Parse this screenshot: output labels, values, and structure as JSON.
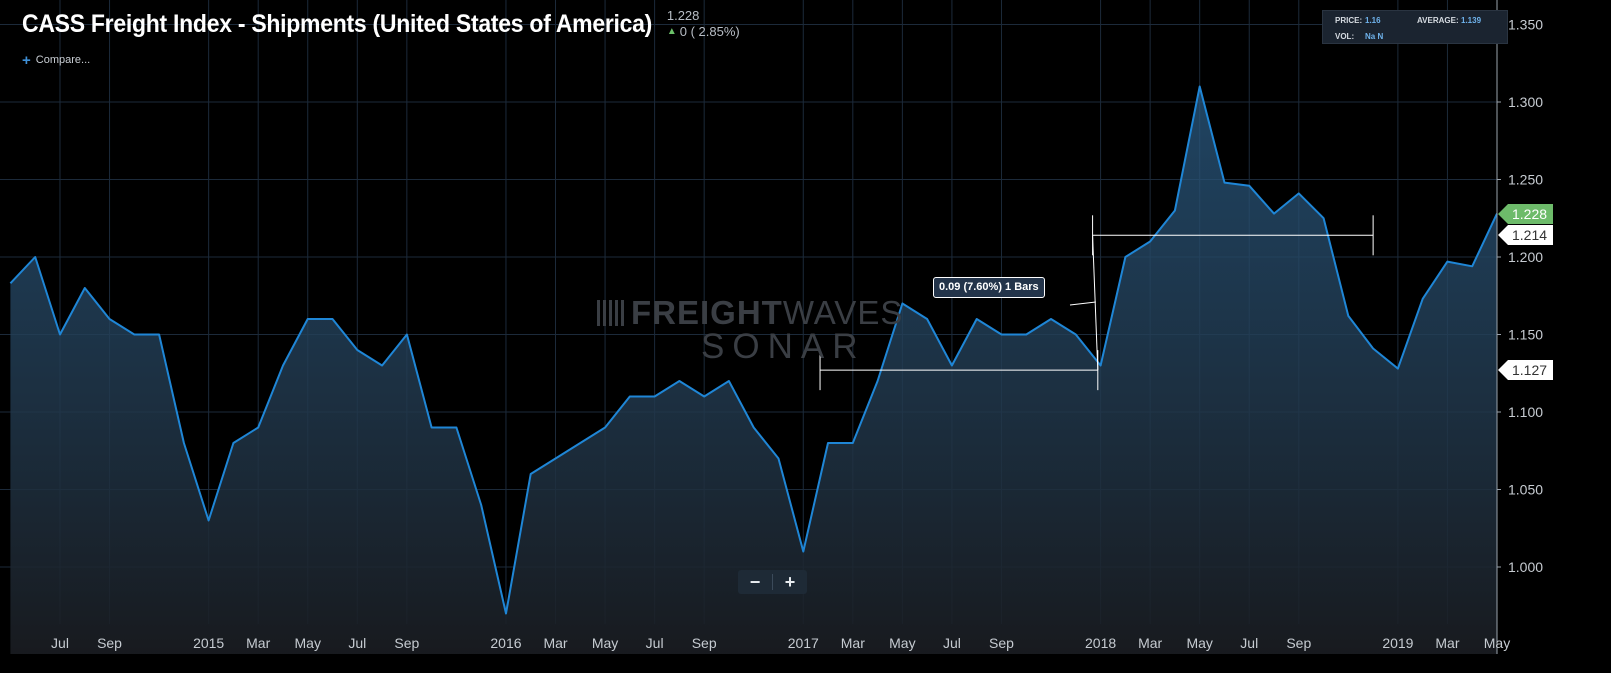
{
  "header": {
    "title": "CASS Freight Index - Shipments (United States of America)",
    "last_value": "1.228",
    "change": "0 ( 2.85%)",
    "compare_label": "Compare...",
    "up_icon": "arrow-up-icon",
    "plus_icon": "plus-icon"
  },
  "info_box": {
    "price_label": "PRICE:",
    "price_value": "1.16",
    "average_label": "AVERAGE:",
    "average_value": "1.139",
    "vol_label": "VOL:",
    "vol_value": "Na N"
  },
  "zoom": {
    "minus": "−",
    "plus": "+"
  },
  "watermark": {
    "line1a": "FREIGHT",
    "line1b": "WAVES",
    "line2": "SONAR"
  },
  "measure_tooltip": "0.09 (7.60%) 1 Bars",
  "price_tags": [
    {
      "label": "1.228",
      "value": 1.228,
      "bg": "#6dbb6a",
      "fg": "#ffffff"
    },
    {
      "label": "1.214",
      "value": 1.214,
      "bg": "#ffffff",
      "fg": "#333333"
    },
    {
      "label": "1.127",
      "value": 1.127,
      "bg": "#ffffff",
      "fg": "#333333"
    }
  ],
  "colors": {
    "line": "#1f86d6",
    "grid": "#1c2a3a",
    "axis_text": "#c6cbd1"
  },
  "chart_data": {
    "type": "area",
    "x": [
      "2014-05",
      "2014-06",
      "2014-07",
      "2014-08",
      "2014-09",
      "2014-10",
      "2014-11",
      "2014-12",
      "2015-01",
      "2015-02",
      "2015-03",
      "2015-04",
      "2015-05",
      "2015-06",
      "2015-07",
      "2015-08",
      "2015-09",
      "2015-10",
      "2015-11",
      "2015-12",
      "2016-01",
      "2016-02",
      "2016-03",
      "2016-04",
      "2016-05",
      "2016-06",
      "2016-07",
      "2016-08",
      "2016-09",
      "2016-10",
      "2016-11",
      "2016-12",
      "2017-01",
      "2017-02",
      "2017-03",
      "2017-04",
      "2017-05",
      "2017-06",
      "2017-07",
      "2017-08",
      "2017-09",
      "2017-10",
      "2017-11",
      "2017-12",
      "2018-01",
      "2018-02",
      "2018-03",
      "2018-04",
      "2018-05",
      "2018-06",
      "2018-07",
      "2018-08",
      "2018-09",
      "2018-10",
      "2018-11",
      "2018-12",
      "2019-01",
      "2019-02",
      "2019-03",
      "2019-04",
      "2019-05"
    ],
    "series": [
      {
        "values": [
          1.183,
          1.2,
          1.15,
          1.18,
          1.16,
          1.15,
          1.15,
          1.08,
          1.03,
          1.08,
          1.09,
          1.13,
          1.16,
          1.16,
          1.14,
          1.13,
          1.15,
          1.09,
          1.09,
          1.04,
          0.97,
          1.06,
          1.07,
          1.08,
          1.09,
          1.11,
          1.11,
          1.12,
          1.11,
          1.12,
          1.09,
          1.07,
          1.01,
          1.08,
          1.08,
          1.12,
          1.17,
          1.16,
          1.13,
          1.16,
          1.15,
          1.15,
          1.16,
          1.15,
          1.13,
          1.2,
          1.21,
          1.23,
          1.31,
          1.248,
          1.246,
          1.228,
          1.241,
          1.225,
          1.162,
          1.141,
          1.128,
          1.173,
          1.197,
          1.194,
          1.228
        ]
      }
    ],
    "x_ticks": [
      {
        "x": "2014-07",
        "label": "Jul"
      },
      {
        "x": "2014-09",
        "label": "Sep"
      },
      {
        "x": "2015-01",
        "label": "2015"
      },
      {
        "x": "2015-03",
        "label": "Mar"
      },
      {
        "x": "2015-05",
        "label": "May"
      },
      {
        "x": "2015-07",
        "label": "Jul"
      },
      {
        "x": "2015-09",
        "label": "Sep"
      },
      {
        "x": "2016-01",
        "label": "2016"
      },
      {
        "x": "2016-03",
        "label": "Mar"
      },
      {
        "x": "2016-05",
        "label": "May"
      },
      {
        "x": "2016-07",
        "label": "Jul"
      },
      {
        "x": "2016-09",
        "label": "Sep"
      },
      {
        "x": "2017-01",
        "label": "2017"
      },
      {
        "x": "2017-03",
        "label": "Mar"
      },
      {
        "x": "2017-05",
        "label": "May"
      },
      {
        "x": "2017-07",
        "label": "Jul"
      },
      {
        "x": "2017-09",
        "label": "Sep"
      },
      {
        "x": "2018-01",
        "label": "2018"
      },
      {
        "x": "2018-03",
        "label": "Mar"
      },
      {
        "x": "2018-05",
        "label": "May"
      },
      {
        "x": "2018-07",
        "label": "Jul"
      },
      {
        "x": "2018-09",
        "label": "Sep"
      },
      {
        "x": "2019-01",
        "label": "2019"
      },
      {
        "x": "2019-03",
        "label": "Mar"
      },
      {
        "x": "2019-05",
        "label": "May"
      }
    ],
    "y_ticks": [
      "1.000",
      "1.050",
      "1.100",
      "1.150",
      "1.200",
      "1.250",
      "1.300",
      "1.350"
    ],
    "xlim": [
      "2014-05",
      "2019-05"
    ],
    "ylim": [
      0.965,
      1.35
    ],
    "grid": true,
    "measurements": [
      {
        "x_start": "2017-02",
        "x_end": "2017-12",
        "y": 1.127
      },
      {
        "x_start": "2018-01",
        "x_end": "2018-12",
        "y": 1.214
      }
    ]
  }
}
